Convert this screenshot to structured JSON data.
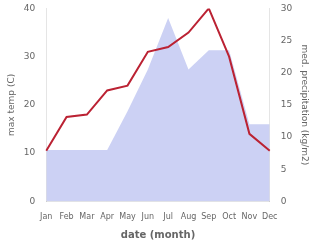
{
  "chart_data": {
    "type": "line",
    "xlabel": "date (month)",
    "ylabel": "max temp (C)",
    "y2label": "med. precipitation (kg/m2)",
    "categories": [
      "Jan",
      "Feb",
      "Mar",
      "Apr",
      "May",
      "Jun",
      "Jul",
      "Aug",
      "Sep",
      "Oct",
      "Nov",
      "Dec"
    ],
    "series": [
      {
        "type": "area",
        "axis": "y2",
        "color": "#b0b8ee",
        "values": [
          8.0,
          8.0,
          8.0,
          8.0,
          14.0,
          20.5,
          28.5,
          20.5,
          23.5,
          23.5,
          12.0,
          12.0
        ]
      },
      {
        "type": "line",
        "color": "#bb2233",
        "values": [
          10.5,
          17.5,
          18.0,
          23.0,
          24.0,
          31.0,
          32.0,
          35.0,
          40.0,
          30.0,
          14.0,
          10.5
        ]
      }
    ],
    "ylim": [
      0,
      40
    ],
    "yticks": [
      0,
      10,
      20,
      30,
      40
    ],
    "y2lim": [
      0,
      30
    ],
    "y2ticks": [
      0,
      5,
      10,
      15,
      20,
      25,
      30
    ],
    "grid": false
  }
}
